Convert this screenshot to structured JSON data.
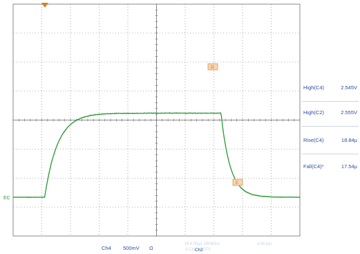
{
  "measurements": [
    {
      "label": "High(C4)",
      "value": "2.545V"
    },
    {
      "label": "High(C2)",
      "value": "2.555V"
    },
    {
      "label": "Rise(C4)",
      "value": "18.84µ"
    },
    {
      "label": "Fall(C4)*",
      "value": "17.54µ"
    }
  ],
  "footer": {
    "channel": "Ch4",
    "scale": "500mV",
    "coupling": "Ω",
    "acq_line1": "M 4.00µs 250MS/s",
    "acq_line2": "A Ch2 / 2.07V",
    "record": "4.0k pts",
    "trig_channel": "Ch2"
  },
  "markers": {
    "ground_label": "EC",
    "rise_cursor": "R",
    "fall_cursor": "F"
  },
  "colors": {
    "trace": "#2e9c3a",
    "grid": "#6e6e6e",
    "cursor": "#e07a1a",
    "measurement_text": "#2a4f9c"
  },
  "chart_data": {
    "type": "line",
    "x": [
      0,
      0.5,
      1,
      1.5,
      2,
      2.5,
      3,
      3.5,
      4,
      4.5,
      5,
      5.5,
      6,
      6.5,
      7,
      7.5,
      8,
      8.5,
      9,
      9.5,
      10
    ],
    "series": [
      {
        "values": [
          -0.15,
          -0.15,
          -0.15,
          1.55,
          2.2,
          2.45,
          2.55,
          2.6,
          2.62,
          2.63,
          2.63,
          2.63,
          2.63,
          2.63,
          2.64,
          1.2,
          0.15,
          -0.12,
          -0.15,
          -0.15,
          -0.15
        ]
      }
    ],
    "grid": true
  }
}
